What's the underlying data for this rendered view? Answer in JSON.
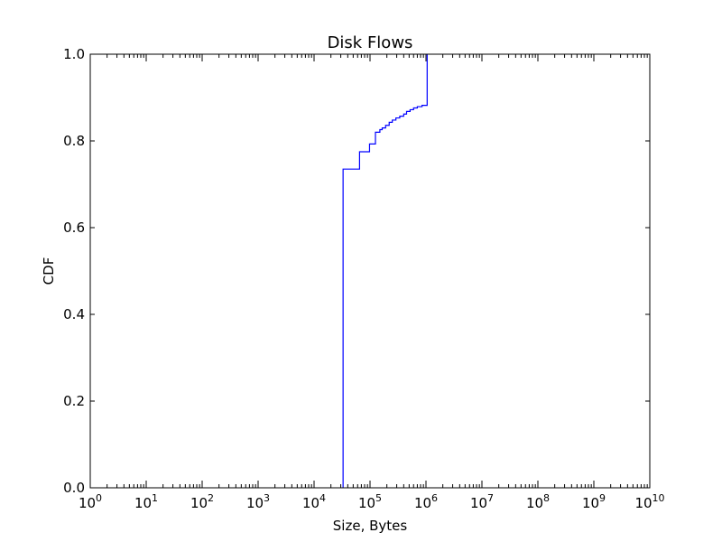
{
  "chart_data": {
    "type": "line",
    "title": "Disk Flows",
    "xlabel": "Size, Bytes",
    "ylabel": "CDF",
    "xscale": "log",
    "xlim": [
      1,
      10000000000
    ],
    "ylim": [
      0.0,
      1.0
    ],
    "grid": false,
    "legend": "none",
    "x_ticks": [
      {
        "base": "10",
        "exp": "0",
        "value": 1
      },
      {
        "base": "10",
        "exp": "1",
        "value": 10
      },
      {
        "base": "10",
        "exp": "2",
        "value": 100
      },
      {
        "base": "10",
        "exp": "3",
        "value": 1000
      },
      {
        "base": "10",
        "exp": "4",
        "value": 10000
      },
      {
        "base": "10",
        "exp": "5",
        "value": 100000
      },
      {
        "base": "10",
        "exp": "6",
        "value": 1000000
      },
      {
        "base": "10",
        "exp": "7",
        "value": 10000000
      },
      {
        "base": "10",
        "exp": "8",
        "value": 100000000
      },
      {
        "base": "10",
        "exp": "9",
        "value": 1000000000
      },
      {
        "base": "10",
        "exp": "10",
        "value": 10000000000
      }
    ],
    "y_ticks": [
      {
        "label": "0.0",
        "value": 0.0
      },
      {
        "label": "0.2",
        "value": 0.2
      },
      {
        "label": "0.4",
        "value": 0.4
      },
      {
        "label": "0.6",
        "value": 0.6
      },
      {
        "label": "0.8",
        "value": 0.8
      },
      {
        "label": "1.0",
        "value": 1.0
      }
    ],
    "series": [
      {
        "color": "#0000ff",
        "step": "post",
        "points": [
          [
            33000,
            0.0
          ],
          [
            33000,
            0.735
          ],
          [
            65000,
            0.775
          ],
          [
            98000,
            0.793
          ],
          [
            125000,
            0.82
          ],
          [
            150000,
            0.826
          ],
          [
            165000,
            0.83
          ],
          [
            190000,
            0.836
          ],
          [
            220000,
            0.843
          ],
          [
            250000,
            0.848
          ],
          [
            290000,
            0.853
          ],
          [
            340000,
            0.857
          ],
          [
            400000,
            0.862
          ],
          [
            450000,
            0.868
          ],
          [
            520000,
            0.872
          ],
          [
            600000,
            0.876
          ],
          [
            700000,
            0.879
          ],
          [
            850000,
            0.882
          ],
          [
            1050000,
            0.885
          ],
          [
            1050000,
            1.0
          ]
        ]
      }
    ]
  }
}
